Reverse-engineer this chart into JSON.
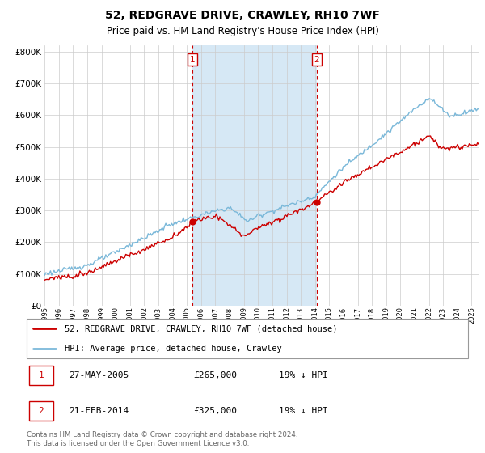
{
  "title": "52, REDGRAVE DRIVE, CRAWLEY, RH10 7WF",
  "subtitle": "Price paid vs. HM Land Registry's House Price Index (HPI)",
  "legend_line1": "52, REDGRAVE DRIVE, CRAWLEY, RH10 7WF (detached house)",
  "legend_line2": "HPI: Average price, detached house, Crawley",
  "table_row1": [
    "1",
    "27-MAY-2005",
    "£265,000",
    "19% ↓ HPI"
  ],
  "table_row2": [
    "2",
    "21-FEB-2014",
    "£325,000",
    "19% ↓ HPI"
  ],
  "footnote": "Contains HM Land Registry data © Crown copyright and database right 2024.\nThis data is licensed under the Open Government Licence v3.0.",
  "sale1_year": 2005.38,
  "sale1_price": 265000,
  "sale2_year": 2014.13,
  "sale2_price": 325000,
  "hpi_color": "#7ab8d9",
  "price_color": "#cc0000",
  "shade_color": "#d6e8f5",
  "grid_color": "#cccccc",
  "vline_color": "#cc0000",
  "ylim": [
    0,
    820000
  ],
  "xlim_start": 1995,
  "xlim_end": 2025.5,
  "tick_years": [
    1995,
    1996,
    1997,
    1998,
    1999,
    2000,
    2001,
    2002,
    2003,
    2004,
    2005,
    2006,
    2007,
    2008,
    2009,
    2010,
    2011,
    2012,
    2013,
    2014,
    2015,
    2016,
    2017,
    2018,
    2019,
    2020,
    2021,
    2022,
    2023,
    2024,
    2025
  ],
  "tick_labels": [
    "1995",
    "1996",
    "1997",
    "1998",
    "1999",
    "2000",
    "2001",
    "2002",
    "2003",
    "2004",
    "2005",
    "2006",
    "2007",
    "2008",
    "2009",
    "2010",
    "2011",
    "2012",
    "2013",
    "2014",
    "2015",
    "2016",
    "2017",
    "2018",
    "2019",
    "2020",
    "2021",
    "2022",
    "2023",
    "2024",
    "2025"
  ]
}
